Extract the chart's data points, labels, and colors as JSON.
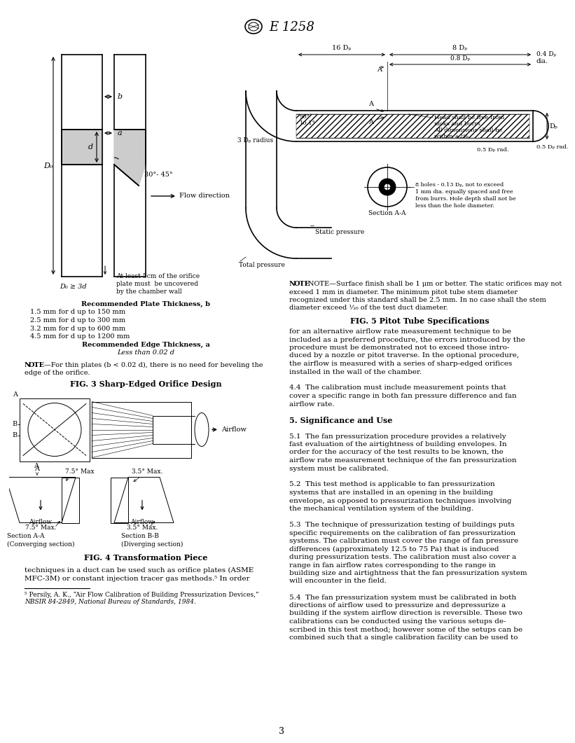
{
  "page_number": "3",
  "header_title": "E 1258",
  "background_color": "#ffffff",
  "fig3_caption": "FIG. 3 Sharp-Edged Orifice Design",
  "fig4_caption": "FIG. 4 Transformation Piece",
  "fig5_caption": "FIG. 5 Pitot Tube Specifications",
  "fig3_note": "NOTE—For thin plates (b < 0.02 d), there is no need for beveling the edge of the orifice.",
  "fig3_plate_lines": [
    "Recommended Plate Thickness, b",
    "1.5 mm for d up to 150 mm",
    "2.5 mm for d up to 300 mm",
    "3.2 mm for d up to 600 mm",
    "4.5 mm for d up to 1200 mm",
    "Recommended Edge Thickness, a",
    "Less than 0.02 d"
  ],
  "fig5_note_lines": [
    "NOTE—Surface finish shall be 1 μm or better. The static orifices may not",
    "exceed 1 mm in diameter. The minimum pitot tube stem diameter",
    "recognized under this standard shall be 2.5 mm. In no case shall the stem",
    "diameter exceed ⅓₀ of the test duct diameter."
  ],
  "right_col_lines": [
    "for an alternative airflow rate measurement technique to be",
    "included as a preferred procedure, the errors introduced by the",
    "procedure must be demonstrated not to exceed those intro-",
    "duced by a nozzle or pitot traverse. In the optional procedure,",
    "the airflow is measured with a series of sharp-edged orifices",
    "installed in the wall of the chamber.",
    "",
    "4.4  The calibration must include measurement points that",
    "cover a specific range in both fan pressure difference and fan",
    "airflow rate.",
    "",
    "5. Significance and Use",
    "",
    "5.1  The fan pressurization procedure provides a relatively",
    "fast evaluation of the airtightness of building envelopes. In",
    "order for the accuracy of the test results to be known, the",
    "airflow rate measurement technique of the fan pressurization",
    "system must be calibrated.",
    "",
    "5.2  This test method is applicable to fan pressurization",
    "systems that are installed in an opening in the building",
    "envelope, as opposed to pressurization techniques involving",
    "the mechanical ventilation system of the building.",
    "",
    "5.3  The technique of pressurization testing of buildings puts",
    "specific requirements on the calibration of fan pressurization",
    "systems. The calibration must cover the range of fan pressure",
    "differences (approximately 12.5 to 75 Pa) that is induced",
    "during pressurization tests. The calibration must also cover a",
    "range in fan airflow rates corresponding to the range in",
    "building size and airtightness that the fan pressurization system",
    "will encounter in the field.",
    "",
    "5.4  The fan pressurization system must be calibrated in both",
    "directions of airflow used to pressurize and depressurize a",
    "building if the system airflow direction is reversible. These two",
    "calibrations can be conducted using the various setups de-",
    "scribed in this test method; however some of the setups can be",
    "combined such that a single calibration facility can be used to"
  ],
  "left_col_bottom_lines": [
    "techniques in a duct can be used such as orifice plates (ASME",
    "MFC-3M) or constant injection tracer gas methods.⁵ In order"
  ],
  "footnote_lines": [
    "⁵ Persily, A. K., “Air Flow Calibration of Building Pressurization Devices,”",
    "NBSIR 84-2849, National Bureau of Standards, 1984."
  ]
}
